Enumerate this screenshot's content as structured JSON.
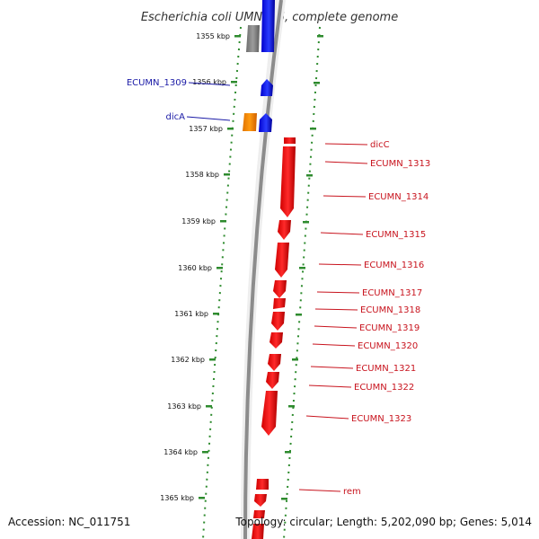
{
  "title": "Escherichia coli UMN026, complete genome",
  "accession_text": "Accession: NC_011751",
  "summary_text": "Topology: circular; Length: 5,202,090 bp; Genes: 5,014",
  "colors": {
    "backbone": "#9a9a9a",
    "ruler_dots": "#2e8b2e",
    "reverse_strand": "#0a14ff",
    "forward_strand": "#ff1010",
    "special_gene": "#ff8c00",
    "pseudo_gene": "#8a8a8a",
    "label_blue": "#1a1aa6",
    "label_red": "#c8141e"
  },
  "kbp_labels": [
    "1355 kbp",
    "1356 kbp",
    "1357 kbp",
    "1358 kbp",
    "1359 kbp",
    "1360 kbp",
    "1361 kbp",
    "1362 kbp",
    "1363 kbp",
    "1364 kbp",
    "1365 kbp"
  ],
  "left_genes": [
    "ECUMN_1309",
    "dicA"
  ],
  "right_genes": [
    "dicC",
    "ECUMN_1313",
    "ECUMN_1314",
    "ECUMN_1315",
    "ECUMN_1316",
    "ECUMN_1317",
    "ECUMN_1318",
    "ECUMN_1319",
    "ECUMN_1320",
    "ECUMN_1321",
    "ECUMN_1322",
    "ECUMN_1323",
    "rem"
  ]
}
